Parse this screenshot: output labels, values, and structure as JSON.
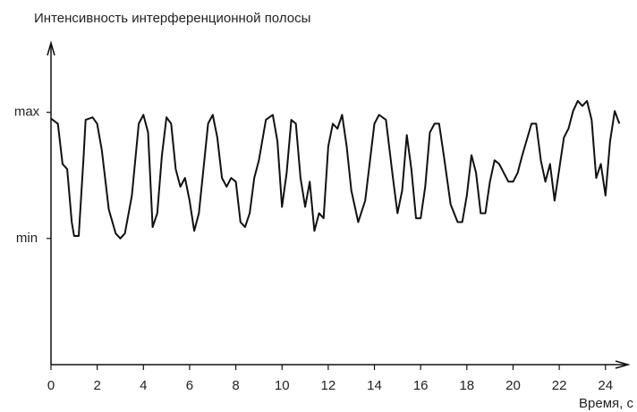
{
  "chart_data": {
    "type": "line",
    "title": "Интенсивность интерференционной полосы",
    "x_label": "Время, с",
    "xlim": [
      0,
      24.9
    ],
    "xticks": [
      0,
      2,
      4,
      6,
      8,
      10,
      12,
      14,
      16,
      18,
      20,
      22,
      24
    ],
    "ylim": [
      -1,
      1.55
    ],
    "yticks": [
      {
        "value": 0,
        "label": "min"
      },
      {
        "value": 1,
        "label": "max"
      }
    ],
    "series": [
      {
        "color": "#111111",
        "x": [
          0,
          0.3,
          0.5,
          0.7,
          0.9,
          1.0,
          1.2,
          1.4,
          1.5,
          1.8,
          2.0,
          2.2,
          2.5,
          2.8,
          3.0,
          3.2,
          3.5,
          3.8,
          4.0,
          4.2,
          4.4,
          4.6,
          4.8,
          5.0,
          5.2,
          5.4,
          5.6,
          5.8,
          6.0,
          6.2,
          6.4,
          6.6,
          6.8,
          7.0,
          7.2,
          7.4,
          7.6,
          7.8,
          8.0,
          8.2,
          8.4,
          8.6,
          8.8,
          9.0,
          9.3,
          9.6,
          9.8,
          10.0,
          10.2,
          10.4,
          10.6,
          10.8,
          11.0,
          11.2,
          11.4,
          11.6,
          11.8,
          12.0,
          12.2,
          12.4,
          12.6,
          12.8,
          13.0,
          13.3,
          13.6,
          14.0,
          14.2,
          14.5,
          14.8,
          15.0,
          15.2,
          15.4,
          15.6,
          15.8,
          16.0,
          16.2,
          16.4,
          16.6,
          16.8,
          17.0,
          17.3,
          17.6,
          17.8,
          18.0,
          18.2,
          18.4,
          18.6,
          18.8,
          19.0,
          19.2,
          19.4,
          19.6,
          19.8,
          20.0,
          20.2,
          20.4,
          20.8,
          21.0,
          21.2,
          21.4,
          21.6,
          21.8,
          22.0,
          22.2,
          22.4,
          22.6,
          22.8,
          23.0,
          23.2,
          23.4,
          23.6,
          23.8,
          24.0,
          24.2,
          24.4,
          24.6
        ],
        "values": [
          0.95,
          0.91,
          0.59,
          0.55,
          0.13,
          0.02,
          0.02,
          0.62,
          0.94,
          0.96,
          0.91,
          0.7,
          0.23,
          0.04,
          0.0,
          0.04,
          0.34,
          0.91,
          0.98,
          0.84,
          0.09,
          0.2,
          0.66,
          0.96,
          0.91,
          0.55,
          0.41,
          0.48,
          0.3,
          0.06,
          0.2,
          0.55,
          0.91,
          0.98,
          0.8,
          0.48,
          0.41,
          0.48,
          0.45,
          0.13,
          0.09,
          0.2,
          0.48,
          0.62,
          0.94,
          0.98,
          0.77,
          0.25,
          0.52,
          0.94,
          0.91,
          0.48,
          0.25,
          0.45,
          0.06,
          0.2,
          0.16,
          0.73,
          0.91,
          0.87,
          0.98,
          0.73,
          0.38,
          0.13,
          0.3,
          0.91,
          0.98,
          0.94,
          0.48,
          0.2,
          0.38,
          0.82,
          0.55,
          0.16,
          0.16,
          0.41,
          0.84,
          0.91,
          0.91,
          0.66,
          0.27,
          0.13,
          0.13,
          0.34,
          0.66,
          0.52,
          0.2,
          0.2,
          0.45,
          0.62,
          0.59,
          0.52,
          0.45,
          0.45,
          0.52,
          0.66,
          0.91,
          0.91,
          0.62,
          0.45,
          0.59,
          0.3,
          0.55,
          0.8,
          0.87,
          1.01,
          1.09,
          1.05,
          1.09,
          0.94,
          0.48,
          0.59,
          0.34,
          0.77,
          1.01,
          0.91
        ]
      }
    ]
  }
}
